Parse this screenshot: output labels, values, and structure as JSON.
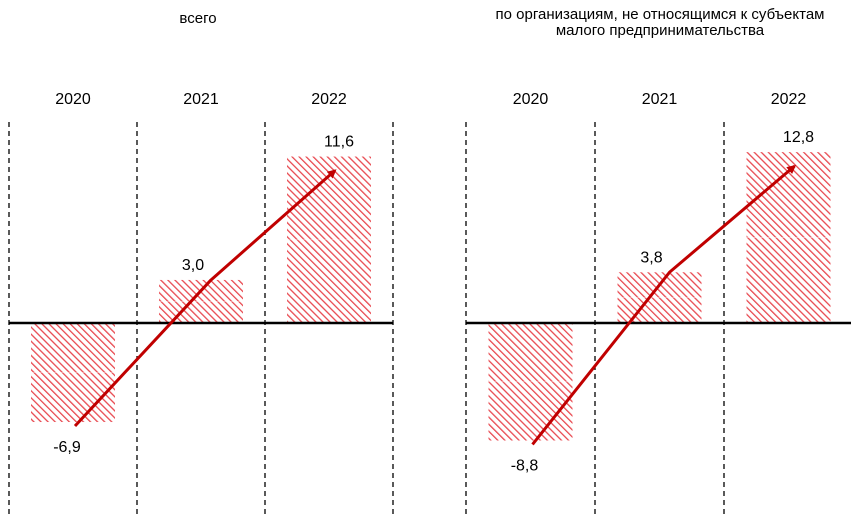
{
  "chart_data": [
    {
      "type": "bar",
      "title": "всего",
      "categories": [
        "2020",
        "2021",
        "2022"
      ],
      "values": [
        -6.9,
        3.0,
        11.6
      ],
      "labels": [
        "-6,9",
        "3,0",
        "11,6"
      ],
      "zero_axis": true,
      "grid": "vertical dashed separators",
      "trend_arrow": true
    },
    {
      "type": "bar",
      "title": "по организациям, не относящимся к субъектам малого предпринимательства",
      "categories": [
        "2020",
        "2021",
        "2022"
      ],
      "values": [
        -8.8,
        3.8,
        12.8
      ],
      "labels": [
        "-8,8",
        "3,8",
        "12,8"
      ],
      "zero_axis": true,
      "grid": "vertical dashed separators",
      "trend_arrow": true
    }
  ],
  "colors": {
    "bar_hatch": "#e8484f",
    "arrow": "#c00000",
    "axis": "#000000"
  }
}
